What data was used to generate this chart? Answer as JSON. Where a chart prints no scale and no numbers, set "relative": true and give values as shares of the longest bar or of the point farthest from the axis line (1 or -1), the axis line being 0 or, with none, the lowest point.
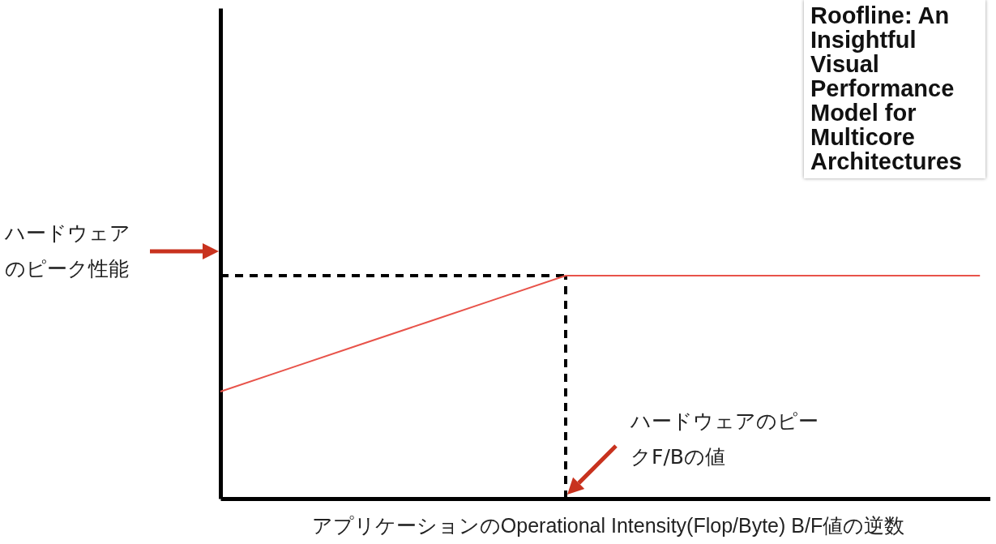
{
  "chart_data": {
    "type": "line",
    "relative": true,
    "marker": "none",
    "line_style": "solid",
    "xlabel": "アプリケーションのOperational Intensity(Flop/Byte) B/F値の逆数",
    "categories": [
      null,
      null,
      null,
      null,
      null,
      null,
      null,
      null,
      null,
      null,
      null,
      null
    ],
    "series": [
      {
        "color": "#e8534a",
        "values": [
          0.48,
          0.584,
          0.688,
          0.792,
          0.896,
          1,
          1,
          1,
          1,
          1,
          1,
          1
        ]
      }
    ],
    "ref_lines": [
      {
        "axis": "y",
        "value": 1,
        "color": "#000000",
        "line_style": "dashed"
      }
    ],
    "annotations": [
      "ハードウェアのピーク性能",
      "ハードウェアのピークF/Bの値",
      "Roofline: An Insightful Visual Performance Model for Multicore Architectures"
    ]
  }
}
